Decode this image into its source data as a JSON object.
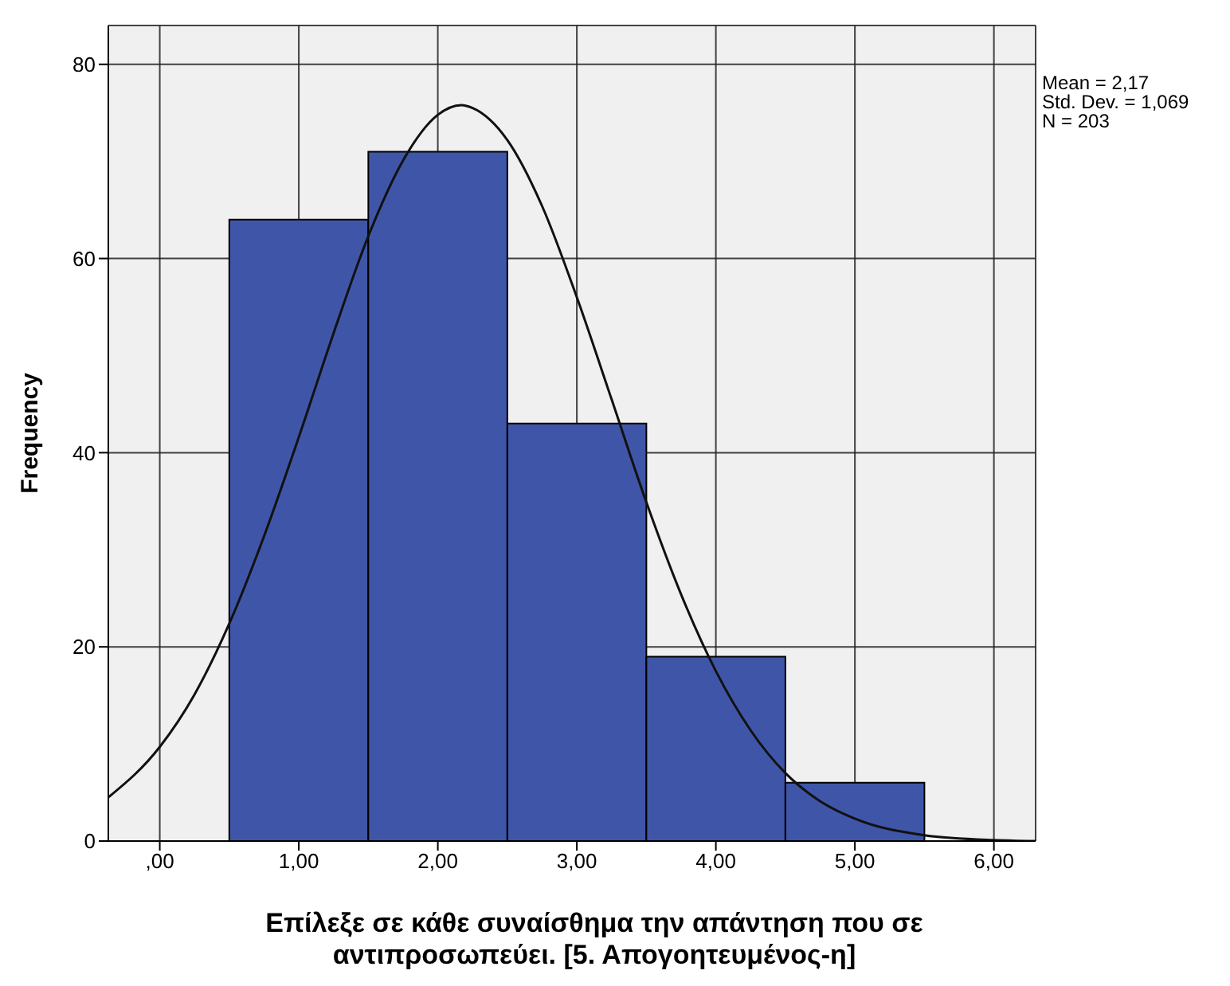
{
  "chart_data": {
    "type": "histogram",
    "xlabel": "Επίλεξε σε κάθε συναίσθημα την απάντηση που σε αντιπροσωπεύει. [5. Απογοητευμένος-η]",
    "ylabel": "Frequency",
    "xlim": [
      -0.37,
      6.3
    ],
    "xticks": [
      {
        "value": 0,
        "label": ",00"
      },
      {
        "value": 1,
        "label": "1,00"
      },
      {
        "value": 2,
        "label": "2,00"
      },
      {
        "value": 3,
        "label": "3,00"
      },
      {
        "value": 4,
        "label": "4,00"
      },
      {
        "value": 5,
        "label": "5,00"
      },
      {
        "value": 6,
        "label": "6,00"
      }
    ],
    "ylim": [
      0,
      84
    ],
    "yticks": [
      0,
      20,
      40,
      60,
      80
    ],
    "grid": true,
    "legend": false,
    "annotations": [
      "Mean = 2,17",
      "Std. Dev. = 1,069",
      "N = 203"
    ],
    "series": [
      {
        "type": "histogram",
        "color": "#3f56a8",
        "bins": [
          0.5,
          1.5,
          2.5,
          3.5,
          4.5,
          5.5
        ],
        "values": [
          64,
          71,
          43,
          19,
          6
        ]
      },
      {
        "type": "line",
        "color": "#111111",
        "x": [
          -0.37,
          0,
          0.25,
          0.5,
          0.75,
          1,
          1.25,
          1.5,
          1.75,
          2,
          2.17,
          2.25,
          2.5,
          2.75,
          3,
          3.25,
          3.5,
          3.75,
          4,
          4.25,
          4.5,
          4.75,
          5,
          5.5,
          6,
          6.3
        ],
        "values": [
          4.5,
          9.7,
          15.1,
          22.4,
          31.4,
          41.6,
          52.3,
          62.3,
          70.1,
          74.8,
          75.8,
          75.5,
          72.2,
          65.4,
          56,
          45.5,
          34.9,
          25.4,
          17.5,
          11.4,
          7,
          4.1,
          2.3,
          0.6,
          0.1,
          0
        ]
      }
    ]
  }
}
